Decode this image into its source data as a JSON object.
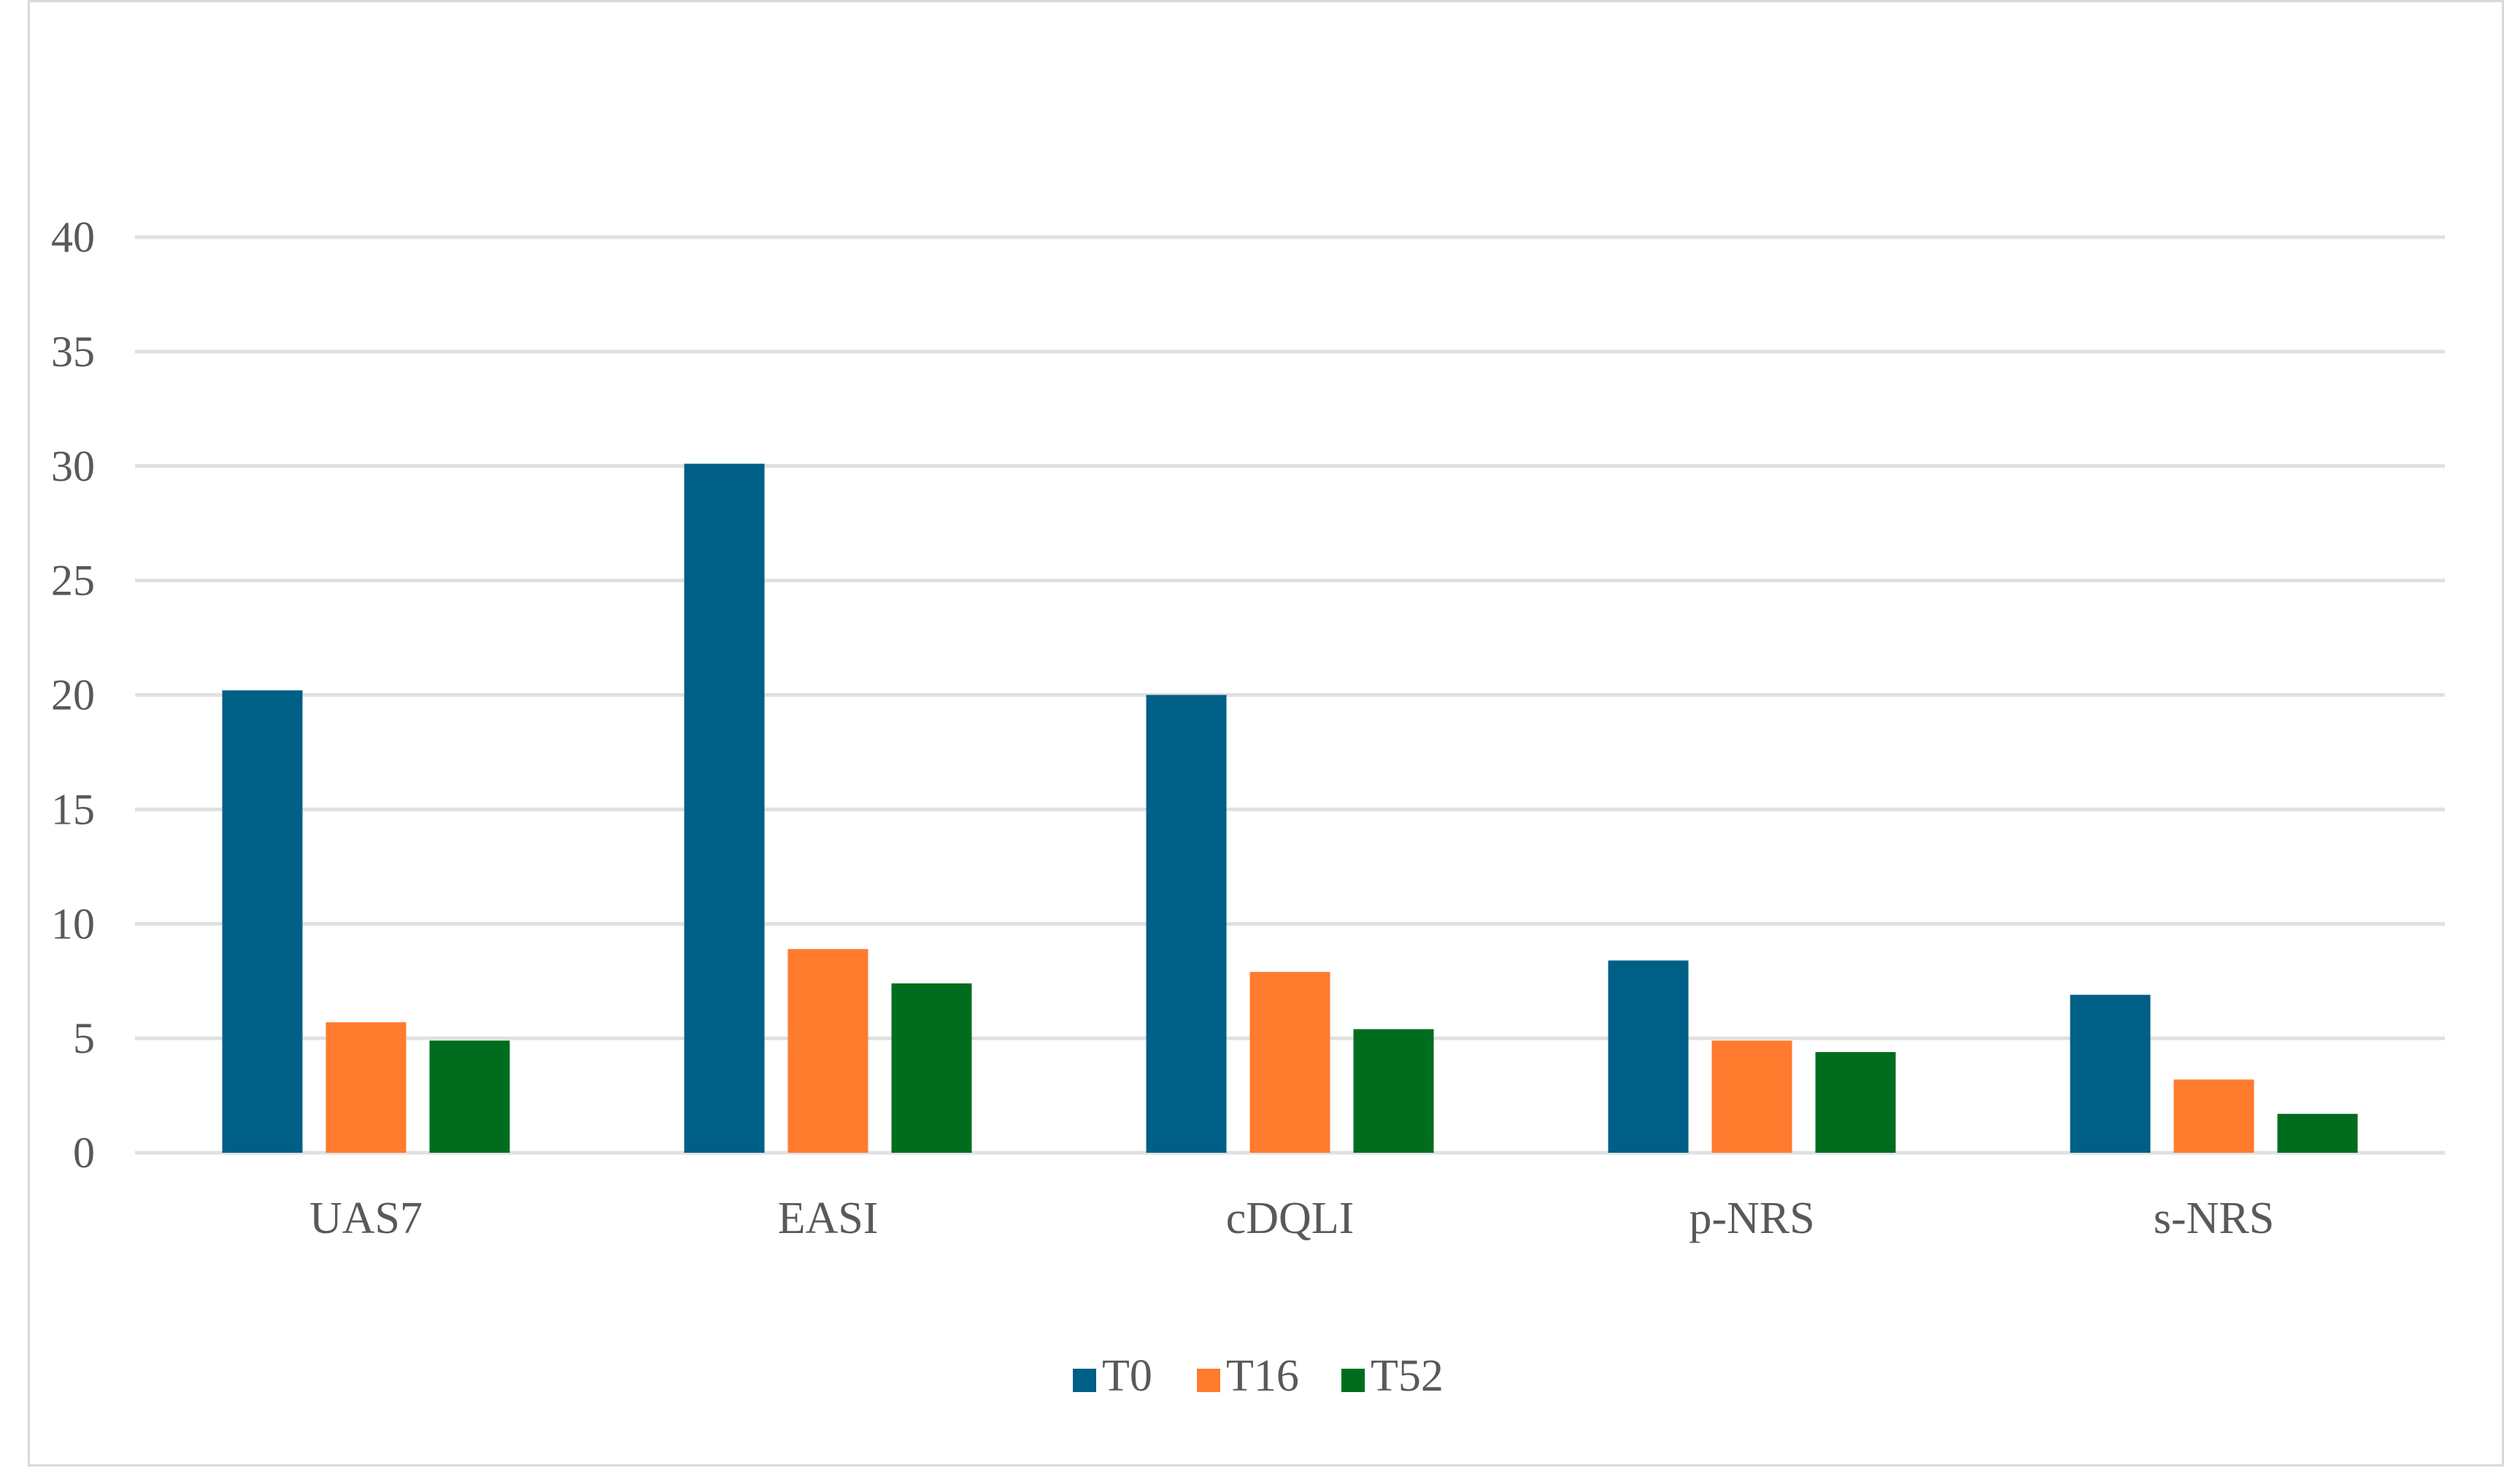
{
  "chart_data": {
    "type": "bar",
    "title": "",
    "xlabel": "",
    "ylabel": "",
    "categories": [
      "UAS7",
      "EASI",
      "cDQLI",
      "p-NRS",
      "s-NRS"
    ],
    "series": [
      {
        "name": "T0",
        "color": "#005f87",
        "values": [
          20.2,
          30.1,
          20.0,
          8.4,
          6.9
        ]
      },
      {
        "name": "T16",
        "color": "#ff7b2e",
        "values": [
          5.7,
          8.9,
          7.9,
          4.9,
          3.2
        ]
      },
      {
        "name": "T52",
        "color": "#006d1e",
        "values": [
          4.9,
          7.4,
          5.4,
          4.4,
          1.7
        ]
      }
    ],
    "ylim": [
      0,
      40
    ],
    "yticks": [
      0,
      5,
      10,
      15,
      20,
      25,
      30,
      35,
      40
    ],
    "grid": true,
    "legend_position": "bottom"
  }
}
